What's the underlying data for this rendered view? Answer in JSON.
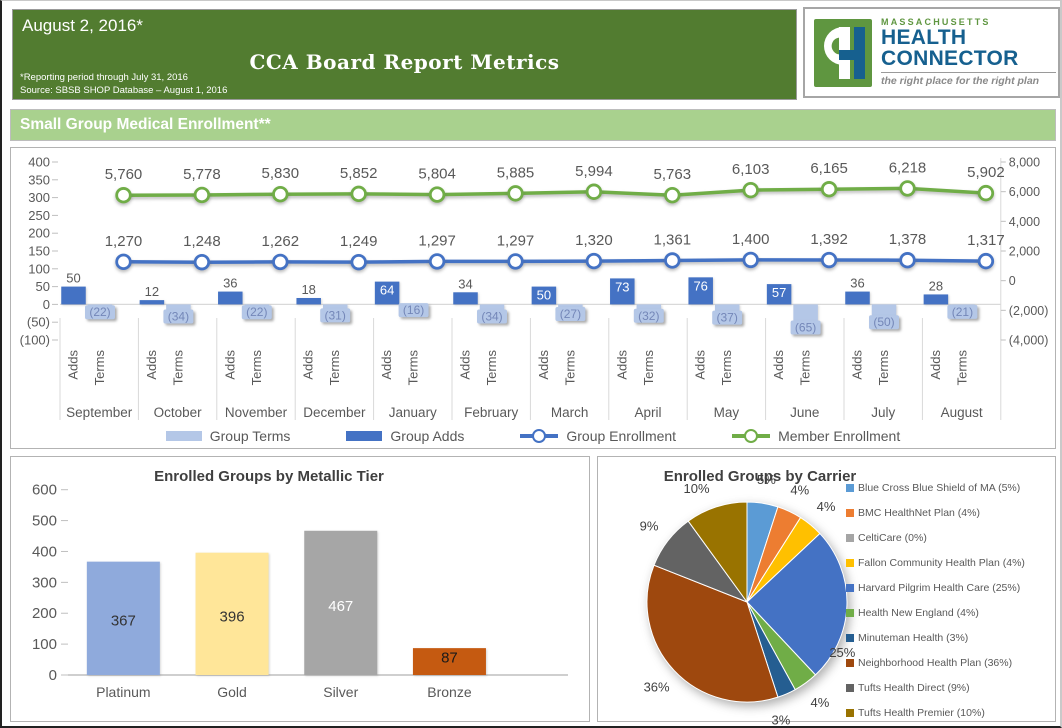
{
  "header": {
    "date": "August 2, 2016*",
    "title": "CCA Board Report Metrics",
    "note1": "*Reporting period through July 31, 2016",
    "note2": "Source: SBSB SHOP Database – August 1, 2016"
  },
  "logo": {
    "region": "MASSACHUSETTS",
    "name_line1": "HEALTH",
    "name_line2": "CONNECTOR",
    "tagline": "the right place for the right plan"
  },
  "section": {
    "title": "Small Group Medical Enrollment**"
  },
  "colors": {
    "header_bg": "#527C30",
    "section_bg": "#A9D18E",
    "logo_green": "#5F9640",
    "logo_blue": "#16608F",
    "axis_text": "#595959"
  },
  "chart_data": [
    {
      "type": "combo-bar-line",
      "categories": [
        "September",
        "October",
        "November",
        "December",
        "January",
        "February",
        "March",
        "April",
        "May",
        "June",
        "July",
        "August"
      ],
      "sub_categories": [
        "Adds",
        "Terms"
      ],
      "left_axis": {
        "min": -100,
        "max": 400,
        "step": 50,
        "ticks": [
          "400",
          "350",
          "300",
          "250",
          "200",
          "150",
          "100",
          "50",
          "0",
          "(50)",
          "(100)"
        ]
      },
      "right_axis": {
        "min": -4000,
        "max": 8000,
        "step": 2000,
        "ticks": [
          "8,000",
          "6,000",
          "4,000",
          "2,000",
          "0",
          "(2,000)",
          "(4,000)"
        ]
      },
      "series": [
        {
          "name": "Group Terms",
          "type": "bar",
          "axis": "left",
          "color": "#B4C7E7",
          "label_color": "#7487B8",
          "values": [
            -22,
            -34,
            -22,
            -31,
            -16,
            -34,
            -27,
            -32,
            -37,
            -65,
            -50,
            -21
          ],
          "labels": [
            "(22)",
            "(34)",
            "(22)",
            "(31)",
            "(16)",
            "(34)",
            "(27)",
            "(32)",
            "(37)",
            "(65)",
            "(50)",
            "(21)"
          ]
        },
        {
          "name": "Group Adds",
          "type": "bar",
          "axis": "left",
          "color": "#4472C4",
          "label_color": "#595959",
          "values": [
            50,
            12,
            36,
            18,
            64,
            34,
            50,
            73,
            76,
            57,
            36,
            28
          ],
          "label_inside": [
            false,
            false,
            false,
            false,
            true,
            false,
            true,
            true,
            true,
            true,
            false,
            false
          ]
        },
        {
          "name": "Group Enrollment",
          "type": "line",
          "axis": "right",
          "color": "#4472C4",
          "values": [
            1270,
            1248,
            1262,
            1249,
            1297,
            1297,
            1320,
            1361,
            1400,
            1392,
            1378,
            1317
          ],
          "labels": [
            "1,270",
            "1,248",
            "1,262",
            "1,249",
            "1,297",
            "1,297",
            "1,320",
            "1,361",
            "1,400",
            "1,392",
            "1,378",
            "1,317"
          ]
        },
        {
          "name": "Member Enrollment",
          "type": "line",
          "axis": "right",
          "color": "#70AD47",
          "values": [
            5760,
            5778,
            5830,
            5852,
            5804,
            5885,
            5994,
            5763,
            6103,
            6165,
            6218,
            5902
          ],
          "labels": [
            "5,760",
            "5,778",
            "5,830",
            "5,852",
            "5,804",
            "5,885",
            "5,994",
            "5,763",
            "6,103",
            "6,165",
            "6,218",
            "5,902"
          ]
        }
      ]
    },
    {
      "type": "bar",
      "title": "Enrolled Groups by Metallic Tier",
      "categories": [
        "Platinum",
        "Gold",
        "Silver",
        "Bronze"
      ],
      "values": [
        367,
        396,
        467,
        87
      ],
      "labels": [
        "367",
        "396",
        "467",
        "87"
      ],
      "colors": [
        "#8FAADC",
        "#FFE699",
        "#A6A6A6",
        "#C55A11"
      ],
      "label_colors": [
        "#333333",
        "#333333",
        "#FFFFFF",
        "#1a1a1a"
      ],
      "ylim": [
        0,
        600
      ],
      "yticks": [
        "600",
        "500",
        "400",
        "300",
        "200",
        "100",
        "0"
      ]
    },
    {
      "type": "pie",
      "title": "Enrolled Groups by Carrier",
      "slices": [
        {
          "name": "Blue Cross Blue Shield of MA (5%)",
          "value": 5,
          "pie_label": "5%",
          "color": "#5B9BD5"
        },
        {
          "name": "BMC HealthNet Plan (4%)",
          "value": 4,
          "pie_label": "4%",
          "color": "#ED7D31"
        },
        {
          "name": "CeltiCare (0%)",
          "value": 0,
          "pie_label": "",
          "color": "#A5A5A5"
        },
        {
          "name": "Fallon Community Health Plan (4%)",
          "value": 4,
          "pie_label": "4%",
          "color": "#FFC000"
        },
        {
          "name": "Harvard Pilgrim Health Care (25%)",
          "value": 25,
          "pie_label": "25%",
          "color": "#4472C4"
        },
        {
          "name": "Health New England (4%)",
          "value": 4,
          "pie_label": "4%",
          "color": "#70AD47"
        },
        {
          "name": "Minuteman Health (3%)",
          "value": 3,
          "pie_label": "3%",
          "color": "#255E91"
        },
        {
          "name": "Neighborhood Health Plan (36%)",
          "value": 36,
          "pie_label": "36%",
          "color": "#9E480E"
        },
        {
          "name": "Tufts Health Direct (9%)",
          "value": 9,
          "pie_label": "9%",
          "color": "#636363"
        },
        {
          "name": "Tufts Health Premier (10%)",
          "value": 10,
          "pie_label": "10%",
          "color": "#997300"
        }
      ]
    }
  ]
}
